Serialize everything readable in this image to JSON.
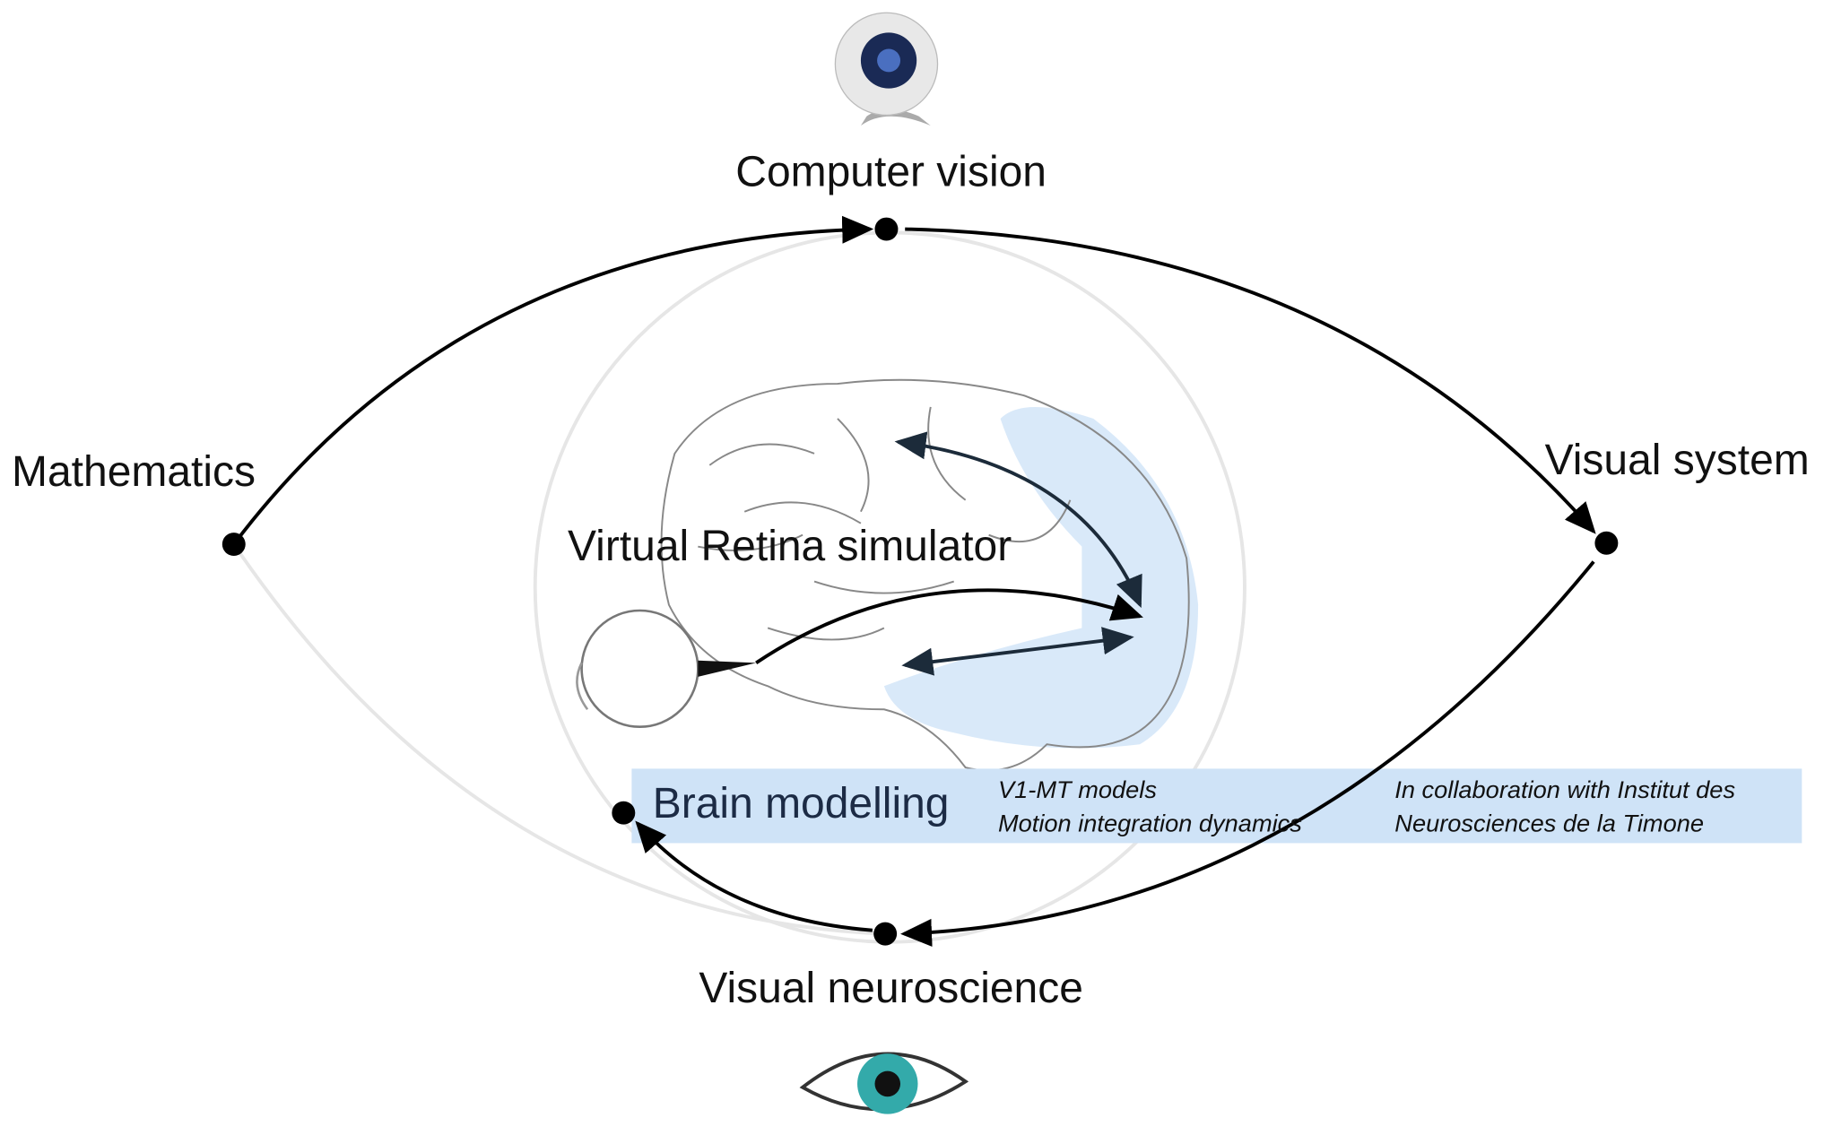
{
  "nodes": [
    {
      "label": "Computer vision"
    },
    {
      "label": "Mathematics"
    },
    {
      "label": "Visual system"
    },
    {
      "label": "Visual neuroscience"
    }
  ],
  "center": {
    "label": "Virtual Retina simulator"
  },
  "banner": {
    "title": "Brain modelling",
    "topics": [
      "V1-MT models",
      "Motion integration dynamics"
    ],
    "note": [
      "In collaboration with Institut des",
      "Neurosciences de la Timone"
    ]
  }
}
